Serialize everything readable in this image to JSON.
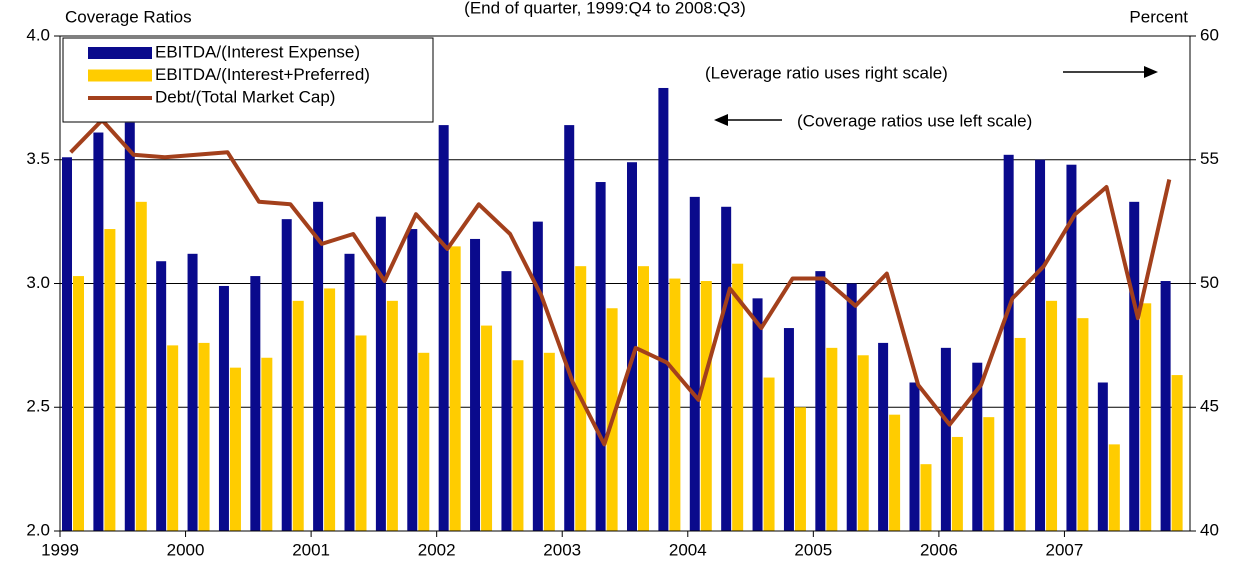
{
  "chart_data": {
    "type": "bar",
    "title": "(End of quarter, 1999:Q4 to 2008:Q3)",
    "y_label": "Coverage Ratios",
    "y2_label": "Percent",
    "annotations": [
      "(Leverage ratio uses right scale)",
      "(Coverage ratios use left scale)"
    ],
    "categories": [
      "1999",
      null,
      null,
      null,
      "2000",
      null,
      null,
      null,
      "2001",
      null,
      null,
      null,
      "2002",
      null,
      null,
      null,
      "2003",
      null,
      null,
      null,
      "2004",
      null,
      null,
      null,
      "2005",
      null,
      null,
      null,
      "2006",
      null,
      null,
      null,
      "2007",
      null,
      null,
      null
    ],
    "series": [
      {
        "name": "EBITDA/(Interest Expense)",
        "color": "#0a0a8c",
        "type": "bar",
        "values": [
          3.51,
          3.61,
          3.65,
          3.09,
          3.12,
          2.99,
          3.03,
          3.26,
          3.33,
          3.12,
          3.27,
          3.22,
          3.64,
          3.18,
          3.05,
          3.25,
          3.64,
          3.41,
          3.49,
          3.79,
          3.35,
          3.31,
          2.94,
          2.82,
          3.05,
          3.0,
          2.76,
          2.6,
          2.74,
          2.68,
          3.52,
          3.5,
          3.48,
          2.6,
          3.33,
          3.01
        ]
      },
      {
        "name": "EBITDA/(Interest+Preferred)",
        "color": "#ffcc00",
        "type": "bar",
        "values": [
          3.03,
          3.22,
          3.33,
          2.75,
          2.76,
          2.66,
          2.7,
          2.93,
          2.98,
          2.79,
          2.93,
          2.72,
          3.15,
          2.83,
          2.69,
          2.72,
          3.07,
          2.9,
          3.07,
          3.02,
          3.01,
          3.08,
          2.62,
          2.5,
          2.74,
          2.71,
          2.47,
          2.27,
          2.38,
          2.46,
          2.78,
          2.93,
          2.86,
          2.35,
          2.92,
          2.63
        ]
      },
      {
        "name": "Debt/(Total Market Cap)",
        "color": "#a3401c",
        "type": "line",
        "axis": "y2",
        "values": [
          55.3,
          56.6,
          55.2,
          55.1,
          55.2,
          55.3,
          53.3,
          53.2,
          51.6,
          52.0,
          50.1,
          52.8,
          51.4,
          53.2,
          52.0,
          49.5,
          46.0,
          43.5,
          47.4,
          46.8,
          45.3,
          49.8,
          48.2,
          50.2,
          50.2,
          49.1,
          50.4,
          45.9,
          44.3,
          45.9,
          49.4,
          50.7,
          52.8,
          53.9,
          48.6,
          54.2
        ]
      }
    ],
    "ylim": [
      2.0,
      4.0
    ],
    "yticks": [
      {
        "value": 2.0,
        "label": "2.0"
      },
      2.5,
      {
        "value": 3.0,
        "label": "3.0"
      },
      3.5,
      {
        "value": 4.0,
        "label": "4.0"
      }
    ],
    "y2lim": [
      40,
      60
    ],
    "y2ticks": [
      40,
      45,
      50,
      55,
      60
    ],
    "grid": true,
    "legend": "upper left"
  }
}
